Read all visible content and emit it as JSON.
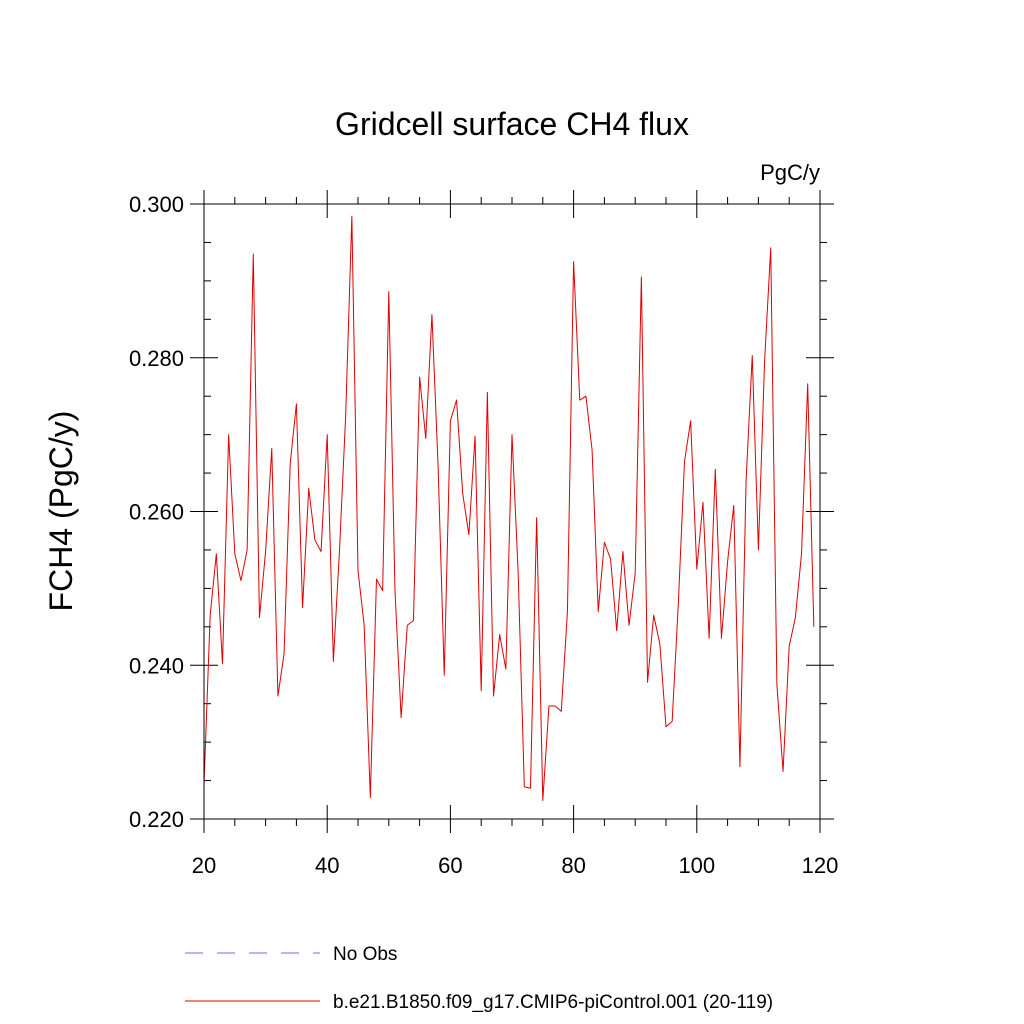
{
  "chart_data": {
    "type": "line",
    "title": "Gridcell surface CH4 flux",
    "units_label": "PgC/y",
    "ylabel": "FCH4  (PgC/y)",
    "xlabel": "",
    "xlim": [
      20,
      120
    ],
    "ylim": [
      0.22,
      0.3
    ],
    "x_ticks": [
      20,
      40,
      60,
      80,
      100,
      120
    ],
    "x_tick_labels": [
      "20",
      "40",
      "60",
      "80",
      "100",
      "120"
    ],
    "y_ticks": [
      0.22,
      0.24,
      0.26,
      0.28,
      0.3
    ],
    "y_tick_labels": [
      "0.220",
      "0.240",
      "0.260",
      "0.280",
      "0.300"
    ],
    "legend": [
      {
        "label": "No Obs",
        "color": "#7b68ee",
        "style": "dashed"
      },
      {
        "label": "b.e21.B1850.f09_g17.CMIP6-piControl.001 (20-119)",
        "color": "#e00000",
        "style": "solid"
      }
    ],
    "series": [
      {
        "name": "b.e21.B1850.f09_g17.CMIP6-piControl.001 (20-119)",
        "color": "#e00000",
        "x_start": 20,
        "values": [
          0.2245,
          0.2465,
          0.2545,
          0.2402,
          0.27,
          0.2545,
          0.251,
          0.255,
          0.2935,
          0.2462,
          0.2548,
          0.2682,
          0.236,
          0.2415,
          0.2663,
          0.274,
          0.2475,
          0.263,
          0.2563,
          0.2548,
          0.27,
          0.2405,
          0.255,
          0.2725,
          0.2984,
          0.2523,
          0.2452,
          0.2228,
          0.2512,
          0.2497,
          0.2886,
          0.2498,
          0.2332,
          0.2452,
          0.2458,
          0.2775,
          0.2695,
          0.2856,
          0.266,
          0.2387,
          0.2718,
          0.2745,
          0.2623,
          0.257,
          0.2698,
          0.2367,
          0.2755,
          0.236,
          0.244,
          0.2395,
          0.27,
          0.252,
          0.2242,
          0.224,
          0.2592,
          0.2224,
          0.2347,
          0.2347,
          0.234,
          0.247,
          0.2925,
          0.2745,
          0.275,
          0.268,
          0.247,
          0.256,
          0.2538,
          0.2445,
          0.2548,
          0.2452,
          0.252,
          0.2905,
          0.2378,
          0.2465,
          0.2428,
          0.232,
          0.2327,
          0.248,
          0.2665,
          0.2718,
          0.2525,
          0.2612,
          0.2435,
          0.2655,
          0.2435,
          0.2535,
          0.2608,
          0.2268,
          0.264,
          0.2803,
          0.255,
          0.2795,
          0.2943,
          0.2375,
          0.2262,
          0.2425,
          0.2462,
          0.2545,
          0.2766,
          0.245
        ]
      }
    ]
  }
}
